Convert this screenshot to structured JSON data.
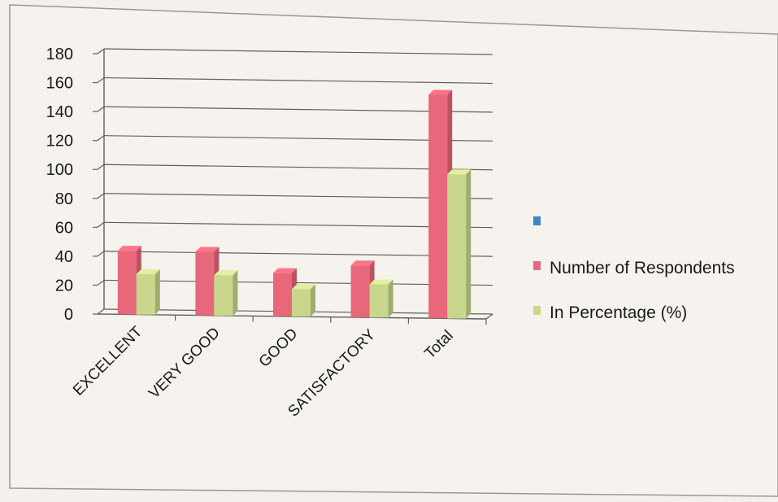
{
  "chart_data": {
    "type": "bar",
    "title": "",
    "xlabel": "",
    "ylabel": "",
    "categories": [
      "EXCELLENT",
      "VERY GOOD",
      "GOOD",
      "SATISFACTORY",
      "Total"
    ],
    "ylim": [
      0,
      180
    ],
    "yticks": [
      "0",
      "20",
      "40",
      "60",
      "80",
      "100",
      "120",
      "140",
      "160",
      "180"
    ],
    "grid": true,
    "legend_position": "right",
    "legend_extra_entry": {
      "name": "",
      "color": "#3e86c8"
    },
    "series": [
      {
        "name": "Number of Respondents",
        "color": "#e8677a",
        "values": [
          44,
          44,
          30,
          36,
          155
        ]
      },
      {
        "name": "In Percentage (%)",
        "color": "#c8d78c",
        "values": [
          28,
          28,
          19,
          23,
          100
        ]
      }
    ]
  }
}
